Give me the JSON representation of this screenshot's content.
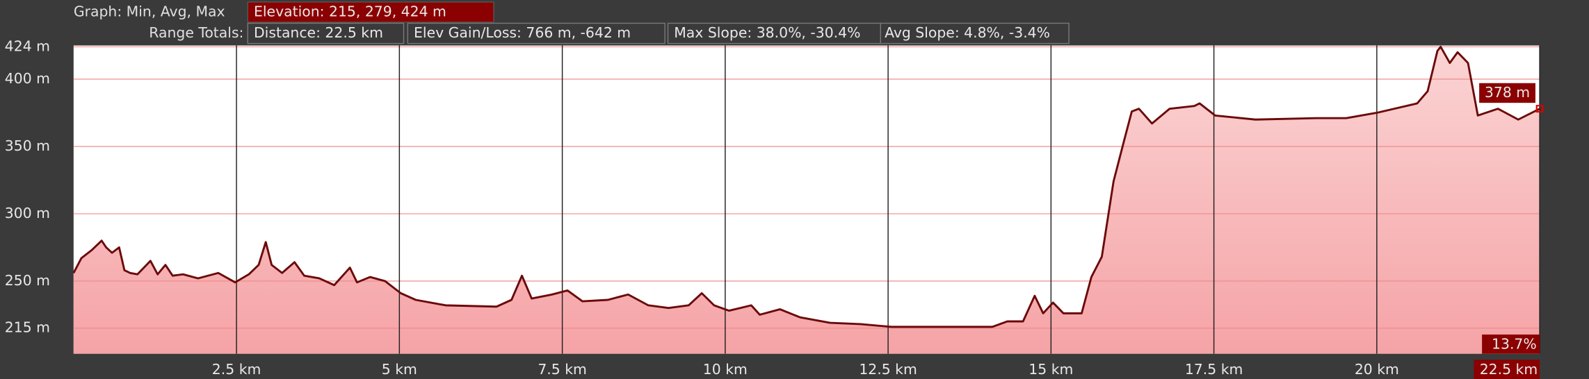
{
  "toolbar": {
    "graph_label": "Graph: Min, Avg, Max",
    "elevation": "Elevation: 215, 279, 424 m",
    "range_label": "Range Totals:",
    "distance": "Distance: 22.5 km",
    "gain_loss": "Elev Gain/Loss: 766 m, -642 m",
    "max_slope": "Max Slope: 38.0%, -30.4%",
    "avg_slope": "Avg Slope: 4.8%, -3.4%"
  },
  "chart_data": {
    "type": "area",
    "x": [
      0,
      0.12,
      0.28,
      0.43,
      0.5,
      0.59,
      0.7,
      0.78,
      0.87,
      0.98,
      1.18,
      1.29,
      1.41,
      1.52,
      1.68,
      1.91,
      2.22,
      2.48,
      2.69,
      2.84,
      2.95,
      3.04,
      3.2,
      3.39,
      3.54,
      3.77,
      4.0,
      4.24,
      4.35,
      4.55,
      4.78,
      5.02,
      5.25,
      5.71,
      6.49,
      6.72,
      6.88,
      7.03,
      7.34,
      7.58,
      7.81,
      8.2,
      8.51,
      8.82,
      9.13,
      9.44,
      9.64,
      9.83,
      10.06,
      10.4,
      10.53,
      10.84,
      11.15,
      11.61,
      12.08,
      12.55,
      13.01,
      13.63,
      14.1,
      14.33,
      14.57,
      14.75,
      14.88,
      15.03,
      15.19,
      15.47,
      15.62,
      15.78,
      15.96,
      16.12,
      16.24,
      16.35,
      16.55,
      16.82,
      17.2,
      17.28,
      17.52,
      18.14,
      19.07,
      19.53,
      20.0,
      20.62,
      20.78,
      20.93,
      20.98,
      21.12,
      21.24,
      21.4,
      21.55,
      21.86,
      22.17,
      22.5
    ],
    "series": [
      {
        "name": "Elevation",
        "color": "#6b0a0a",
        "fill": "#f7b8b8",
        "values": [
          256,
          267,
          273,
          280,
          275,
          271,
          275,
          258,
          256,
          255,
          265,
          255,
          262,
          254,
          255,
          252,
          256,
          249,
          255,
          262,
          279,
          262,
          256,
          264,
          254,
          252,
          247,
          260,
          249,
          253,
          250,
          241,
          236,
          232,
          231,
          236,
          254,
          237,
          240,
          243,
          235,
          236,
          240,
          232,
          230,
          232,
          241,
          232,
          228,
          232,
          225,
          229,
          223,
          219,
          218,
          216,
          216,
          216,
          216,
          220,
          220,
          239,
          226,
          234,
          226,
          226,
          253,
          268,
          324,
          354,
          376,
          378,
          367,
          378,
          380,
          382,
          373,
          370,
          371,
          371,
          375,
          382,
          391,
          421,
          424,
          412,
          420,
          412,
          373,
          378,
          370,
          378
        ]
      }
    ],
    "xlim": [
      0,
      22.5
    ],
    "ylim": [
      196,
      425
    ],
    "xticks": [
      {
        "value": 2.5,
        "label": "2.5 km"
      },
      {
        "value": 5,
        "label": "5 km"
      },
      {
        "value": 7.5,
        "label": "7.5 km"
      },
      {
        "value": 10,
        "label": "10 km"
      },
      {
        "value": 12.5,
        "label": "12.5 km"
      },
      {
        "value": 15,
        "label": "15 km"
      },
      {
        "value": 17.5,
        "label": "17.5 km"
      },
      {
        "value": 20,
        "label": "20 km"
      },
      {
        "value": 22.5,
        "label": "22.5 km"
      }
    ],
    "yticks": [
      {
        "value": 215,
        "label": "215 m"
      },
      {
        "value": 250,
        "label": "250 m"
      },
      {
        "value": 300,
        "label": "300 m"
      },
      {
        "value": 350,
        "label": "350 m"
      },
      {
        "value": 400,
        "label": "400 m"
      },
      {
        "value": 424,
        "label": "424 m"
      }
    ],
    "grid": true,
    "cursor": {
      "elevation_label": "378 m",
      "slope_label": "13.7%"
    }
  }
}
